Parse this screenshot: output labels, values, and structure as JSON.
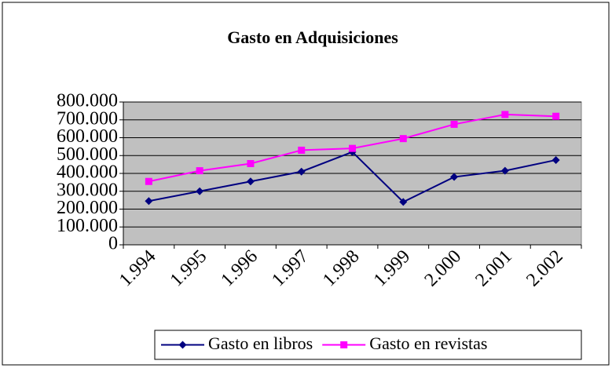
{
  "chart_data": {
    "type": "line",
    "title": "Gasto en Adquisiciones",
    "categories": [
      "1.994",
      "1.995",
      "1.996",
      "1.997",
      "1.998",
      "1.999",
      "2.000",
      "2.001",
      "2.002"
    ],
    "series": [
      {
        "name": "Gasto en libros",
        "color": "#000080",
        "marker": "diamond",
        "values": [
          245000,
          300000,
          355000,
          410000,
          520000,
          240000,
          380000,
          415000,
          475000
        ]
      },
      {
        "name": "Gasto en revistas",
        "color": "#ff00ff",
        "marker": "square",
        "values": [
          355000,
          415000,
          455000,
          530000,
          540000,
          595000,
          675000,
          730000,
          720000
        ]
      }
    ],
    "ylim": [
      0,
      800000
    ],
    "yticks": [
      0,
      {
        "value": 100000,
        "label": "100.000"
      },
      {
        "value": 200000,
        "label": "200.000"
      },
      {
        "value": 300000,
        "label": "300.000"
      },
      {
        "value": 400000,
        "label": "400.000"
      },
      {
        "value": 500000,
        "label": "500.000"
      },
      {
        "value": 600000,
        "label": "600.000"
      },
      {
        "value": 700000,
        "label": "700.000"
      },
      {
        "value": 800000,
        "label": "800.000"
      }
    ],
    "grid": true,
    "legend": "bottom"
  }
}
